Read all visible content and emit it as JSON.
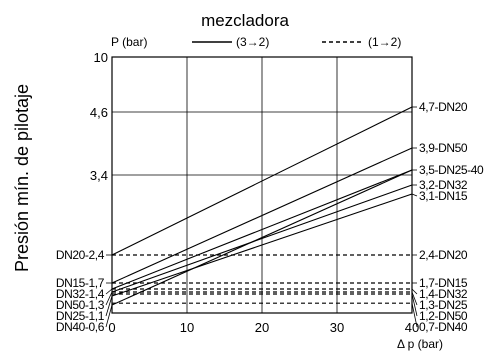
{
  "chart_data": {
    "type": "line",
    "title": "mezcladora",
    "ylabel": "Presión mín. de pilotaje",
    "y_unit_label": "P (bar)",
    "xlabel": "Δ p (bar)",
    "xlim": [
      0,
      40
    ],
    "x_ticks": [
      "0",
      "10",
      "20",
      "30",
      "40"
    ],
    "y_ticks": [
      "10",
      "4,6",
      "3,4"
    ],
    "grid": true,
    "legend": [
      {
        "label": "(3→2)",
        "style": "solid"
      },
      {
        "label": "(1→2)",
        "style": "dashed"
      }
    ],
    "series_3_2": [
      {
        "start_label": "",
        "end_label": "4,7-DN20",
        "start_value": 2.4,
        "end_value": 4.7
      },
      {
        "start_label": "DN15-1,7",
        "end_label": "3,9-DN50",
        "start_value": 1.7,
        "end_value": 3.9
      },
      {
        "start_label": "DN32-1,4",
        "end_label": "3,5-DN25-40",
        "start_value": 1.4,
        "end_value": 3.5
      },
      {
        "start_label": "DN50-1,3",
        "end_label": "3,2-DN32",
        "start_value": 1.3,
        "end_value": 3.2
      },
      {
        "start_label": "DN25-1,1",
        "end_label": "3,1-DN15",
        "start_value": 1.1,
        "end_value": 3.1
      },
      {
        "start_label": "DN40-0,6",
        "end_label": "",
        "start_value": 0.6,
        "end_value": 3.5
      }
    ],
    "series_1_2": [
      {
        "start_label": "DN20-2,4",
        "end_label": "2,4-DN20",
        "value": 2.4
      },
      {
        "start_label": "",
        "end_label": "1,7-DN15",
        "value": 1.7
      },
      {
        "start_label": "",
        "end_label": "1,4-DN32",
        "value": 1.4
      },
      {
        "start_label": "",
        "end_label": "1,3-DN25",
        "value": 1.3
      },
      {
        "start_label": "",
        "end_label": "1,2-DN50",
        "value": 1.2
      },
      {
        "start_label": "",
        "end_label": "0,7-DN40",
        "value": 0.7
      }
    ]
  }
}
